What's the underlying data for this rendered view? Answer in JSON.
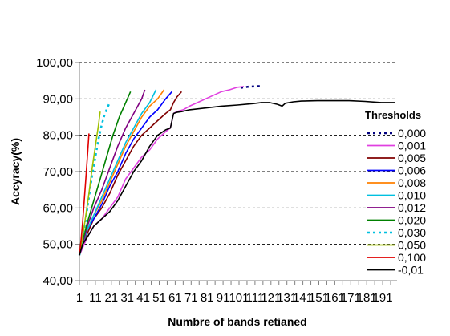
{
  "chart_data": {
    "type": "line",
    "title": "",
    "xlabel": "Numbre of bands retianed",
    "ylabel": "Accyracy(%)",
    "xlim": [
      1,
      200
    ],
    "ylim": [
      40,
      100
    ],
    "grid": "horizontal dashed",
    "legend_position": "right",
    "legend_title": "Thresholds",
    "y_ticks": [
      {
        "value": 40,
        "label": "40,00"
      },
      {
        "value": 50,
        "label": "50,00"
      },
      {
        "value": 60,
        "label": "60,00"
      },
      {
        "value": 70,
        "label": "70,00"
      },
      {
        "value": 80,
        "label": "80,00"
      },
      {
        "value": 90,
        "label": "90,00"
      },
      {
        "value": 100,
        "label": "100,00"
      }
    ],
    "x_tick_labels": [
      {
        "value": 1,
        "label": "1"
      },
      {
        "value": 11,
        "label": "11"
      },
      {
        "value": 21,
        "label": "21"
      },
      {
        "value": 31,
        "label": "31"
      },
      {
        "value": 41,
        "label": "41"
      },
      {
        "value": 51,
        "label": "51"
      },
      {
        "value": 61,
        "label": "61"
      },
      {
        "value": 71,
        "label": "71"
      },
      {
        "value": 81,
        "label": "81"
      },
      {
        "value": 91,
        "label": "91"
      },
      {
        "value": 101,
        "label": "101"
      },
      {
        "value": 111,
        "label": "111"
      },
      {
        "value": 121,
        "label": "121"
      },
      {
        "value": 131,
        "label": "131"
      },
      {
        "value": 141,
        "label": "141"
      },
      {
        "value": 151,
        "label": "151"
      },
      {
        "value": 161,
        "label": "161"
      },
      {
        "value": 171,
        "label": "171"
      },
      {
        "value": 181,
        "label": "181"
      },
      {
        "value": 191,
        "label": "191"
      }
    ],
    "series": [
      {
        "name": "0,000",
        "color": "#000080",
        "dash": "dot",
        "x": [
          102,
          104,
          106,
          108,
          110,
          112,
          114
        ],
        "y": [
          93.0,
          93.2,
          93.3,
          93.4,
          93.4,
          93.5,
          93.5
        ]
      },
      {
        "name": "0,001",
        "color": "#e040e0",
        "dash": "solid",
        "x": [
          1,
          3,
          6,
          10,
          15,
          20,
          25,
          30,
          35,
          40,
          45,
          50,
          55,
          58,
          60,
          62,
          66,
          70,
          75,
          80,
          85,
          90,
          95,
          100,
          104
        ],
        "y": [
          47,
          49,
          52,
          55,
          57,
          60,
          63,
          68,
          71,
          74,
          76,
          79,
          81,
          82,
          86,
          86.5,
          87,
          88,
          89,
          90,
          91,
          92,
          92.5,
          93.2,
          93.4
        ]
      },
      {
        "name": "0,005",
        "color": "#800000",
        "dash": "solid",
        "x": [
          1,
          3,
          6,
          10,
          15,
          20,
          25,
          30,
          35,
          40,
          45,
          50,
          55,
          58,
          60,
          62,
          65
        ],
        "y": [
          47,
          50,
          53,
          57,
          60,
          64,
          69,
          73,
          77,
          80,
          82,
          84,
          86,
          87,
          89,
          90.5,
          92
        ]
      },
      {
        "name": "0,006",
        "color": "#0000ff",
        "dash": "solid",
        "x": [
          1,
          3,
          6,
          10,
          15,
          20,
          25,
          30,
          35,
          40,
          45,
          50,
          55,
          59
        ],
        "y": [
          47,
          50,
          54,
          57,
          61,
          66,
          70,
          75,
          79,
          82,
          85,
          87,
          90,
          92
        ]
      },
      {
        "name": "0,008",
        "color": "#ff8000",
        "dash": "solid",
        "x": [
          1,
          3,
          6,
          10,
          15,
          20,
          25,
          30,
          35,
          40,
          45,
          50,
          54
        ],
        "y": [
          47,
          50,
          54,
          58,
          62,
          67,
          72,
          77,
          81,
          85,
          88,
          90,
          92.5
        ]
      },
      {
        "name": "0,010",
        "color": "#00c0e0",
        "dash": "solid",
        "x": [
          1,
          3,
          6,
          10,
          15,
          20,
          25,
          30,
          35,
          40,
          45,
          49
        ],
        "y": [
          47,
          50,
          54,
          58,
          63,
          68,
          73,
          78,
          82,
          86,
          89,
          92.5
        ]
      },
      {
        "name": "0,012",
        "color": "#800080",
        "dash": "solid",
        "x": [
          1,
          3,
          6,
          10,
          15,
          20,
          25,
          30,
          35,
          40,
          42
        ],
        "y": [
          47,
          50,
          55,
          60,
          65,
          71,
          77,
          82,
          86,
          90,
          92.5
        ]
      },
      {
        "name": "0,020",
        "color": "#008000",
        "dash": "solid",
        "x": [
          1,
          3,
          6,
          10,
          14,
          18,
          22,
          26,
          30,
          33
        ],
        "y": [
          47,
          51,
          56,
          62,
          68,
          74,
          80,
          85,
          89,
          92
        ]
      },
      {
        "name": "0,030",
        "color": "#00c0e0",
        "dash": "dot",
        "x": [
          1,
          3,
          5,
          7,
          9,
          11,
          13,
          15,
          17,
          20
        ],
        "y": [
          47,
          52,
          57,
          63,
          69,
          74,
          79,
          83,
          86,
          89
        ]
      },
      {
        "name": "0,050",
        "color": "#a0c000",
        "dash": "solid",
        "x": [
          1,
          3,
          5,
          7,
          9,
          11,
          13,
          14
        ],
        "y": [
          47,
          52,
          58,
          64,
          71,
          77,
          83,
          86.5
        ]
      },
      {
        "name": "0,100",
        "color": "#e00000",
        "dash": "solid",
        "x": [
          1,
          2,
          3,
          4,
          5,
          6,
          7
        ],
        "y": [
          47,
          51,
          56,
          62,
          68,
          74,
          80.5
        ]
      },
      {
        "name": "-0,01",
        "color": "#000000",
        "dash": "solid",
        "x": [
          1,
          3,
          6,
          10,
          15,
          20,
          25,
          30,
          35,
          40,
          45,
          50,
          55,
          58,
          60,
          62,
          65,
          70,
          80,
          90,
          100,
          110,
          115,
          120,
          125,
          128,
          130,
          135,
          140,
          150,
          160,
          170,
          180,
          190,
          199
        ],
        "y": [
          47,
          50,
          52,
          55,
          57,
          59,
          62,
          66,
          70,
          73,
          77,
          80,
          81.5,
          82,
          86,
          86.3,
          86.5,
          87,
          87.5,
          88,
          88.3,
          88.7,
          89,
          89,
          88.5,
          88,
          88.8,
          89.2,
          89.4,
          89.5,
          89.5,
          89.5,
          89.3,
          89.0,
          89.0
        ]
      }
    ]
  }
}
